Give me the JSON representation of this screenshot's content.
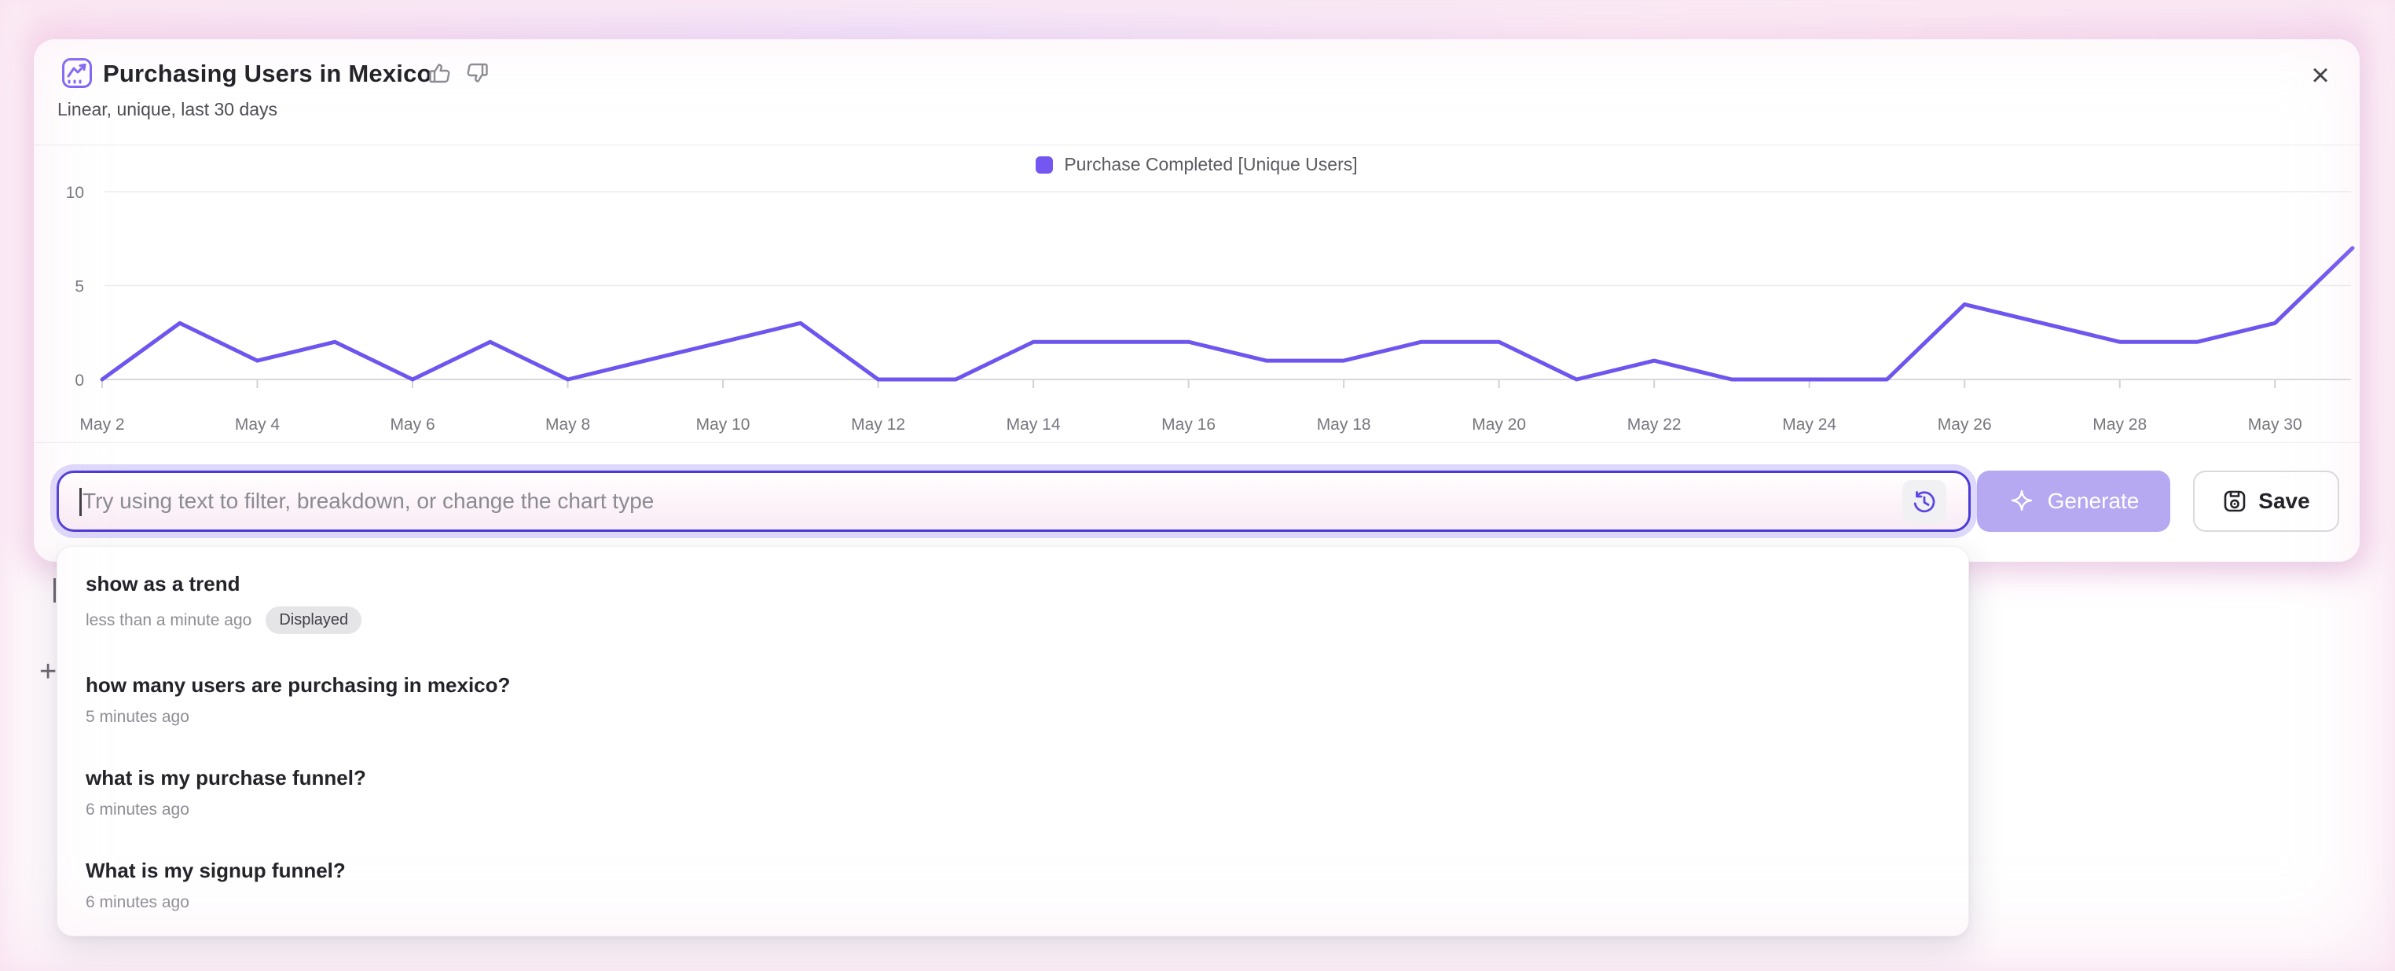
{
  "header": {
    "title": "Purchasing Users in Mexico",
    "subtitle": "Linear, unique, last 30 days",
    "close_label": "×"
  },
  "legend": {
    "label": "Purchase Completed [Unique Users]"
  },
  "colors": {
    "accent_purple": "#7456f1",
    "line_purple": "#6f55ef",
    "input_border": "#4a3ad6",
    "generate_bg": "#b6a9f2",
    "pink_glow": "#f6d2e8"
  },
  "chart_data": {
    "type": "line",
    "title": "Purchasing Users in Mexico",
    "xlabel": "",
    "ylabel": "",
    "ylim": [
      0,
      10
    ],
    "y_ticks": [
      0,
      5,
      10
    ],
    "grid": "horizontal",
    "legend_position": "top-center",
    "x_label_every": 2,
    "x": [
      "May 2",
      "May 3",
      "May 4",
      "May 5",
      "May 6",
      "May 7",
      "May 8",
      "May 9",
      "May 10",
      "May 11",
      "May 12",
      "May 13",
      "May 14",
      "May 15",
      "May 16",
      "May 17",
      "May 18",
      "May 19",
      "May 20",
      "May 21",
      "May 22",
      "May 23",
      "May 24",
      "May 25",
      "May 26",
      "May 27",
      "May 28",
      "May 29",
      "May 30",
      "May 31"
    ],
    "series": [
      {
        "name": "Purchase Completed [Unique Users]",
        "color": "#6f55ef",
        "values": [
          0,
          3,
          1,
          2,
          0,
          2,
          0,
          1,
          2,
          3,
          0,
          0,
          2,
          2,
          2,
          1,
          1,
          2,
          2,
          0,
          1,
          0,
          0,
          0,
          4,
          3,
          2,
          2,
          3,
          7
        ]
      }
    ]
  },
  "composer": {
    "placeholder": "Try using text to filter, breakdown, or change the chart type",
    "generate_label": "Generate",
    "save_label": "Save"
  },
  "history": {
    "items": [
      {
        "query": "show as a trend",
        "time": "less than a minute ago",
        "badge": "Displayed"
      },
      {
        "query": "how many users are purchasing in mexico?",
        "time": "5 minutes ago",
        "badge": ""
      },
      {
        "query": "what is my purchase funnel?",
        "time": "6 minutes ago",
        "badge": ""
      },
      {
        "query": "What is my signup funnel?",
        "time": "6 minutes ago",
        "badge": ""
      }
    ]
  },
  "page": {
    "ghost_plus": "+"
  }
}
